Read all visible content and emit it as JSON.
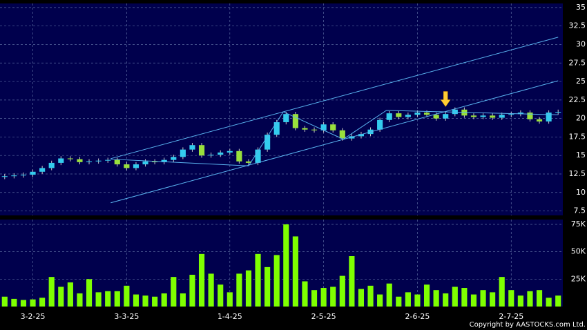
{
  "chart_data": {
    "type": "candlestick",
    "categories": [
      null,
      null,
      null,
      "3-2-25",
      null,
      null,
      null,
      null,
      null,
      null,
      null,
      null,
      null,
      "3-3-25",
      null,
      null,
      null,
      null,
      null,
      null,
      null,
      null,
      null,
      null,
      "1-4-25",
      null,
      null,
      null,
      null,
      null,
      null,
      null,
      null,
      null,
      "2-5-25",
      null,
      null,
      null,
      null,
      null,
      null,
      null,
      null,
      null,
      "2-6-25",
      null,
      null,
      null,
      null,
      null,
      null,
      null,
      null,
      null,
      "2-7-25",
      null,
      null,
      null,
      null,
      null
    ],
    "open": [
      12.1,
      12.2,
      12.3,
      12.4,
      12.8,
      13.3,
      14.0,
      14.6,
      14.5,
      14.1,
      14.2,
      14.3,
      14.4,
      13.8,
      13.3,
      13.8,
      14.2,
      14.1,
      14.4,
      14.8,
      15.8,
      16.4,
      15.0,
      15.1,
      15.4,
      15.6,
      14.2,
      14.0,
      15.8,
      17.8,
      19.5,
      20.6,
      18.7,
      18.5,
      18.4,
      19.2,
      18.4,
      17.3,
      17.6,
      17.9,
      18.5,
      19.8,
      20.7,
      20.2,
      20.5,
      20.8,
      20.5,
      20.0,
      20.6,
      21.2,
      20.4,
      20.2,
      20.4,
      20.1,
      20.5,
      20.6,
      20.8,
      19.9,
      19.6,
      20.8
    ],
    "high": [
      12.5,
      12.6,
      12.7,
      13.1,
      13.6,
      14.3,
      14.9,
      14.9,
      14.8,
      14.5,
      14.6,
      14.7,
      14.7,
      14.1,
      14.1,
      14.5,
      14.5,
      14.7,
      15.1,
      16.1,
      16.7,
      16.7,
      15.4,
      15.7,
      15.9,
      15.9,
      14.5,
      16.1,
      18.1,
      19.8,
      20.9,
      20.9,
      19.0,
      18.8,
      19.5,
      19.5,
      18.7,
      17.9,
      18.2,
      18.8,
      20.1,
      21.0,
      21.0,
      20.8,
      21.1,
      21.1,
      20.8,
      20.9,
      21.5,
      21.5,
      20.7,
      20.7,
      20.7,
      20.8,
      20.9,
      21.1,
      21.1,
      20.2,
      21.1,
      21.2
    ],
    "low": [
      11.8,
      11.9,
      12.0,
      12.1,
      12.5,
      13.0,
      13.7,
      14.2,
      13.8,
      13.8,
      13.9,
      14.0,
      13.5,
      13.0,
      13.0,
      13.5,
      13.8,
      13.8,
      14.1,
      14.5,
      15.5,
      14.7,
      14.7,
      14.8,
      15.1,
      13.9,
      13.7,
      13.7,
      15.5,
      17.5,
      19.2,
      18.4,
      18.2,
      18.1,
      18.1,
      18.1,
      17.0,
      17.0,
      17.3,
      17.6,
      18.2,
      19.5,
      19.9,
      19.9,
      20.2,
      20.2,
      19.7,
      19.7,
      20.3,
      20.1,
      19.9,
      19.9,
      19.8,
      19.8,
      20.2,
      20.3,
      19.6,
      19.3,
      19.3,
      20.5
    ],
    "close": [
      12.2,
      12.3,
      12.4,
      12.8,
      13.3,
      14.0,
      14.6,
      14.5,
      14.1,
      14.2,
      14.3,
      14.4,
      13.8,
      13.3,
      13.8,
      14.2,
      14.1,
      14.4,
      14.8,
      15.8,
      16.4,
      15.0,
      15.1,
      15.4,
      15.6,
      14.2,
      14.0,
      15.8,
      17.8,
      19.5,
      20.6,
      18.7,
      18.5,
      18.4,
      19.2,
      18.4,
      17.3,
      17.6,
      17.9,
      18.5,
      19.8,
      20.7,
      20.2,
      20.5,
      20.8,
      20.5,
      20.0,
      20.6,
      21.2,
      20.4,
      20.2,
      20.4,
      20.1,
      20.5,
      20.6,
      20.8,
      19.9,
      19.6,
      20.8,
      20.9
    ],
    "up_color": "#33ccee",
    "down_color": "#99e03c",
    "ylim": [
      6.9,
      35.55
    ],
    "yticks": [
      7.5,
      10,
      12.5,
      15,
      17.5,
      20,
      22.5,
      25,
      27.5,
      30,
      32.5,
      35
    ],
    "grid": true,
    "lines": [
      {
        "x": [
          11.3,
          59.0
        ],
        "y": [
          14.57,
          30.99
        ]
      },
      {
        "x": [
          11.3,
          59.0
        ],
        "y": [
          8.6,
          25.1
        ]
      },
      {
        "x": [
          11.3,
          26.0,
          29.7,
          36.1,
          40.7,
          59.0
        ],
        "y": [
          14.5,
          13.6,
          20.9,
          17.2,
          21.1,
          20.5
        ]
      }
    ],
    "line_color": "#5ab4f0",
    "arrow": {
      "x": 47,
      "y": 21.6,
      "color": "#ffcc33"
    },
    "volume": {
      "values": [
        9000,
        7000,
        6000,
        6500,
        8000,
        27000,
        18000,
        22000,
        12000,
        25000,
        13000,
        14000,
        14000,
        19000,
        11000,
        10000,
        9000,
        12000,
        27000,
        12000,
        29000,
        48000,
        30000,
        20000,
        13000,
        30000,
        33000,
        48000,
        36000,
        47000,
        75000,
        64000,
        23000,
        15000,
        17000,
        18000,
        28000,
        46000,
        16000,
        19000,
        11000,
        21000,
        9000,
        13000,
        11000,
        20000,
        15000,
        12000,
        18000,
        17000,
        11000,
        15000,
        13000,
        27000,
        15000,
        10000,
        14000,
        15000,
        8000,
        10000
      ],
      "color": "#7fff00",
      "ylim": [
        0,
        79400
      ],
      "yticks": [
        {
          "value": 25000,
          "label": "25K"
        },
        {
          "value": 50000,
          "label": "50K"
        },
        {
          "value": 75000,
          "label": "75K"
        }
      ]
    },
    "copyright": "Copyright by AASTOCKS.com Ltd."
  }
}
